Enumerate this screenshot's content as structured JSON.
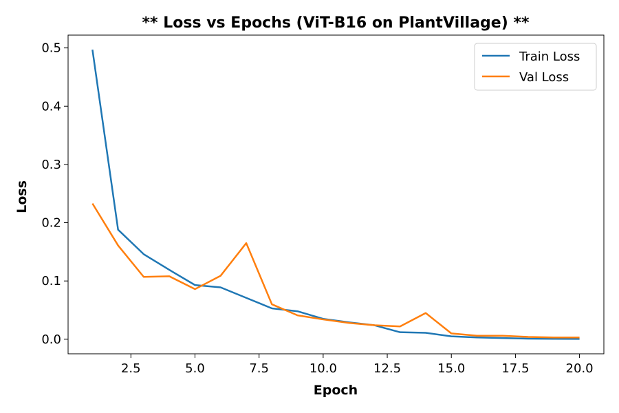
{
  "chart_data": {
    "type": "line",
    "title": "** Loss vs Epochs (ViT-B16 on PlantVillage) **",
    "xlabel": "Epoch",
    "ylabel": "Loss",
    "xlim": [
      0.05,
      20.95
    ],
    "ylim": [
      -0.025,
      0.522
    ],
    "xticks": [
      2.5,
      5.0,
      7.5,
      10.0,
      12.5,
      15.0,
      17.5,
      20.0
    ],
    "xtick_labels": [
      "2.5",
      "5.0",
      "7.5",
      "10.0",
      "12.5",
      "15.0",
      "17.5",
      "20.0"
    ],
    "yticks": [
      0.0,
      0.1,
      0.2,
      0.3,
      0.4,
      0.5
    ],
    "ytick_labels": [
      "0.0",
      "0.1",
      "0.2",
      "0.3",
      "0.4",
      "0.5"
    ],
    "grid": false,
    "legend_position": "top-right",
    "x": [
      1,
      2,
      3,
      4,
      5,
      6,
      7,
      8,
      9,
      10,
      11,
      12,
      13,
      14,
      15,
      16,
      17,
      18,
      19,
      20
    ],
    "series": [
      {
        "name": "Train Loss",
        "color": "#1f77b4",
        "values": [
          0.497,
          0.188,
          0.146,
          0.119,
          0.093,
          0.089,
          0.071,
          0.053,
          0.048,
          0.035,
          0.029,
          0.024,
          0.012,
          0.011,
          0.005,
          0.003,
          0.002,
          0.001,
          0.0007,
          0.0005
        ]
      },
      {
        "name": "Val Loss",
        "color": "#ff7f0e",
        "values": [
          0.233,
          0.161,
          0.107,
          0.108,
          0.086,
          0.109,
          0.165,
          0.06,
          0.041,
          0.034,
          0.028,
          0.024,
          0.022,
          0.045,
          0.01,
          0.006,
          0.006,
          0.004,
          0.003,
          0.003
        ]
      }
    ]
  }
}
